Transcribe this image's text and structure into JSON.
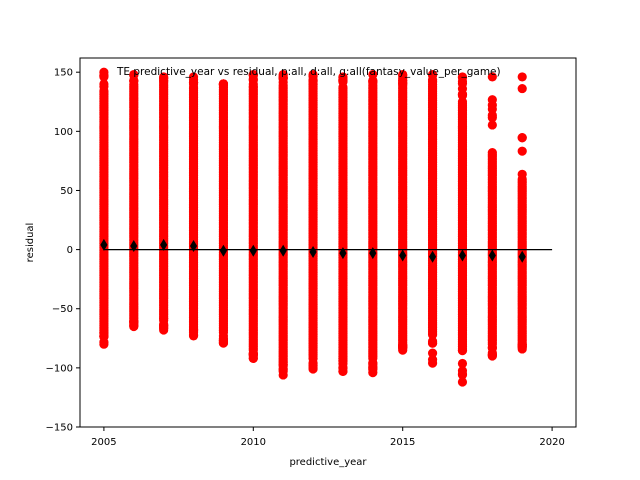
{
  "chart_data": {
    "type": "scatter",
    "title": "TE predictive_year vs residual, p:all, d:all, g:all(fantasy_value_per_game)",
    "xlabel": "predictive_year",
    "ylabel": "residual",
    "xlim": [
      2004.2,
      2020.8
    ],
    "ylim": [
      -150,
      162
    ],
    "xticks": [
      2005,
      2010,
      2015,
      2020
    ],
    "yticks": [
      -150,
      -100,
      -50,
      0,
      50,
      100,
      150
    ],
    "grid": false,
    "colors": {
      "points": "#ff0000",
      "means": "#000000",
      "zero_line": "#000000"
    },
    "zero_line": {
      "y": 0,
      "x_start": 2005,
      "x_end": 2020
    },
    "series": [
      {
        "marker": "circle",
        "color": "#ff0000",
        "columns": [
          {
            "x": 2005,
            "min": -80,
            "dense_min": -70,
            "dense_max": 135,
            "max": 150
          },
          {
            "x": 2006,
            "min": -65,
            "dense_min": -60,
            "dense_max": 140,
            "max": 148
          },
          {
            "x": 2007,
            "min": -68,
            "dense_min": -58,
            "dense_max": 140,
            "max": 146
          },
          {
            "x": 2008,
            "min": -73,
            "dense_min": -65,
            "dense_max": 138,
            "max": 146
          },
          {
            "x": 2009,
            "min": -79,
            "dense_min": -70,
            "dense_max": 140,
            "max": 140
          },
          {
            "x": 2010,
            "min": -92,
            "dense_min": -85,
            "dense_max": 138,
            "max": 148
          },
          {
            "x": 2011,
            "min": -106,
            "dense_min": -95,
            "dense_max": 140,
            "max": 148
          },
          {
            "x": 2012,
            "min": -101,
            "dense_min": -90,
            "dense_max": 140,
            "max": 148
          },
          {
            "x": 2013,
            "min": -103,
            "dense_min": -92,
            "dense_max": 138,
            "max": 146
          },
          {
            "x": 2014,
            "min": -104,
            "dense_min": -92,
            "dense_max": 140,
            "max": 148
          },
          {
            "x": 2015,
            "min": -85,
            "dense_min": -80,
            "dense_max": 140,
            "max": 148
          },
          {
            "x": 2016,
            "min": -96,
            "dense_min": -72,
            "dense_max": 140,
            "max": 148
          },
          {
            "x": 2017,
            "min": -112,
            "dense_min": -85,
            "dense_max": 125,
            "max": 146
          },
          {
            "x": 2018,
            "min": -90,
            "dense_min": -80,
            "dense_max": 82,
            "max": 146
          },
          {
            "x": 2019,
            "min": -84,
            "dense_min": -80,
            "dense_max": 60,
            "max": 146
          }
        ]
      },
      {
        "marker": "diamond",
        "color": "#000000",
        "x": [
          2005,
          2006,
          2007,
          2008,
          2009,
          2010,
          2011,
          2012,
          2013,
          2014,
          2015,
          2016,
          2017,
          2018,
          2019
        ],
        "values": [
          4,
          3,
          4,
          3,
          -1,
          -1,
          -1,
          -2,
          -3,
          -3,
          -5,
          -6,
          -5,
          -5,
          -6
        ]
      }
    ]
  }
}
